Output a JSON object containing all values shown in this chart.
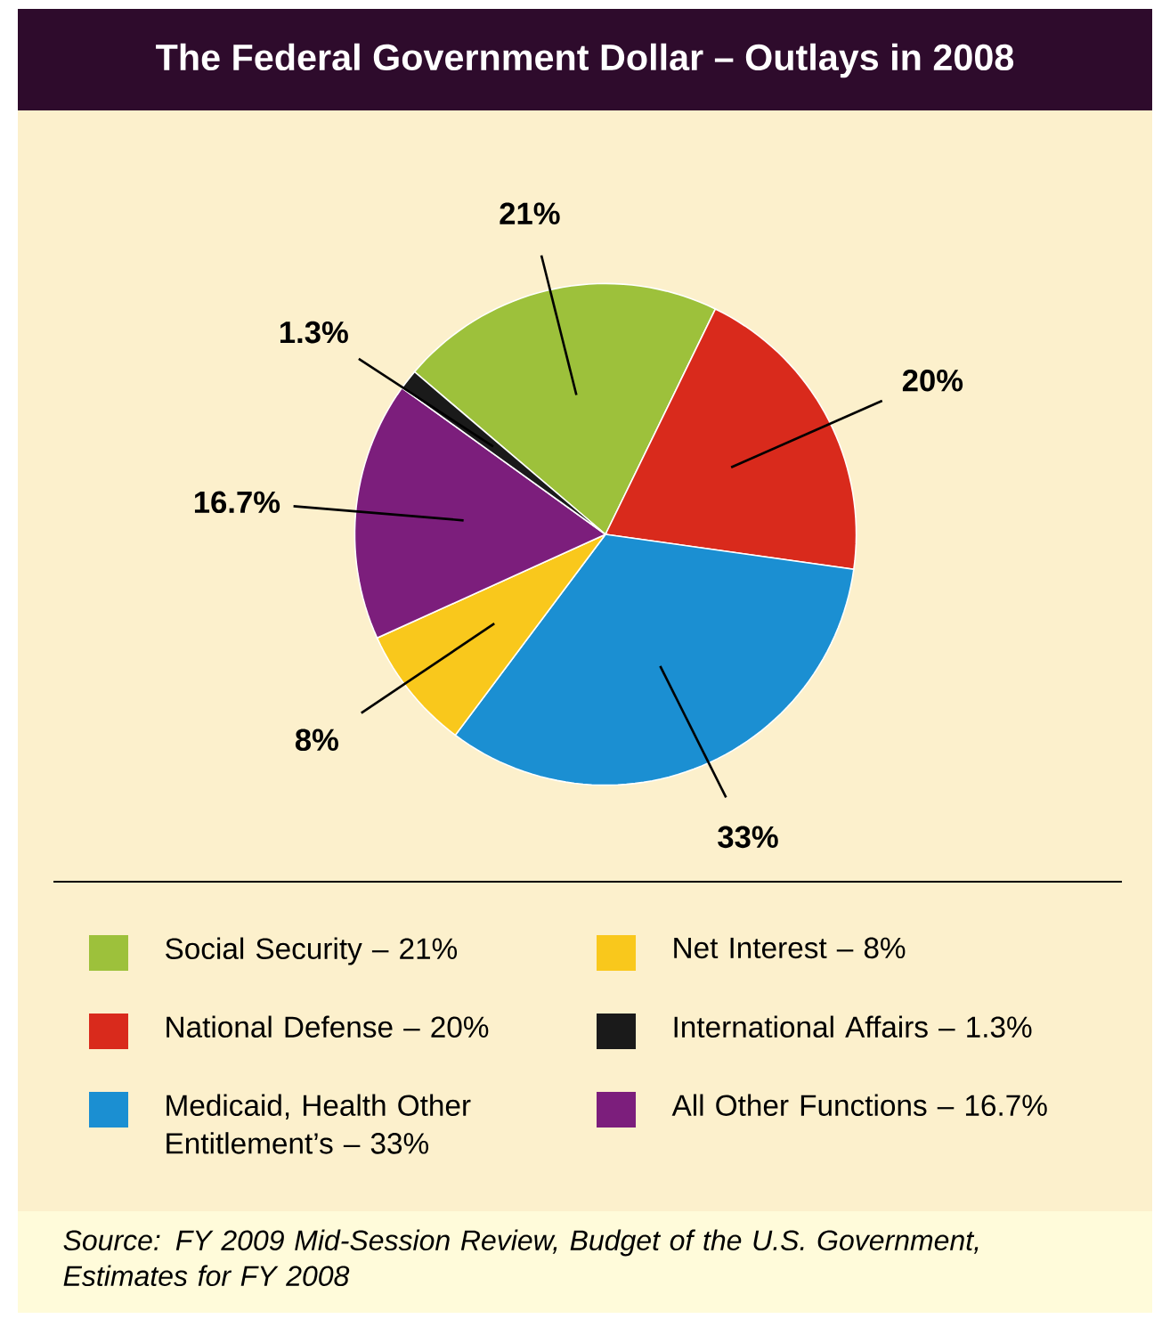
{
  "chart_data": {
    "type": "pie",
    "title": "The Federal Government Dollar – Outlays in 2008",
    "categories": [
      "Social Security – 21%",
      "National Defense – 20%",
      "Medicaid, Health Other Entitlement’s – 33%",
      "Net Interest – 8%",
      "All Other Functions – 16.7%",
      "International Affairs – 1.3%"
    ],
    "values": [
      21,
      20,
      33,
      8,
      16.7,
      1.3
    ],
    "value_labels": [
      "21%",
      "20%",
      "33%",
      "8%",
      "16.7%",
      "1.3%"
    ],
    "colors": [
      "#9dc13b",
      "#d92a1c",
      "#1b8fd2",
      "#f9c81c",
      "#7c1e7c",
      "#1a1a1a"
    ],
    "legend": "bottom",
    "annotations": [
      "Source: FY 2009 Mid-Session Review, Budget of the U.S. Government, Estimates for FY 2008"
    ]
  }
}
